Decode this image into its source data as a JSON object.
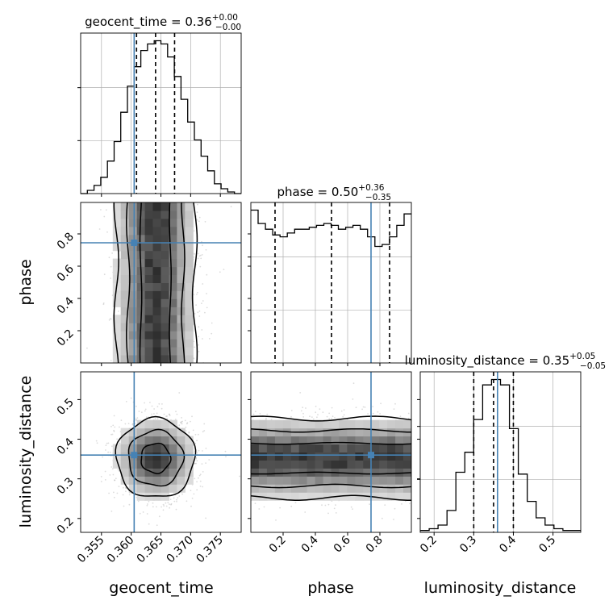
{
  "colors": {
    "truth": "#4682b4",
    "line": "#000000",
    "grid": "#b0b0b0"
  },
  "chart_data": {
    "type": "corner",
    "parameters": [
      "geocent_time",
      "phase",
      "luminosity_distance"
    ],
    "truths": {
      "geocent_time": 0.3605,
      "phase": 0.745,
      "luminosity_distance": 0.36
    },
    "titles": [
      {
        "param": "geocent_time",
        "prefix": "geocent_time = 0.36",
        "plus": "+0.00",
        "minus": "−0.00"
      },
      {
        "param": "phase",
        "prefix": "phase = 0.50",
        "plus": "+0.36",
        "minus": "−0.35"
      },
      {
        "param": "luminosity_distance",
        "prefix": "luminosity_distance = 0.35",
        "plus": "+0.05",
        "minus": "−0.05"
      }
    ],
    "axis_labels": {
      "x": [
        "geocent_time",
        "phase",
        "luminosity_distance"
      ],
      "y": [
        "phase",
        "luminosity_distance"
      ]
    },
    "ranges": {
      "geocent_time": [
        0.3515,
        0.3785
      ],
      "phase": [
        0.0,
        0.995
      ],
      "luminosity_distance": [
        0.165,
        0.57
      ]
    },
    "ticks": {
      "geocent_time": [
        "0.355",
        "0.360",
        "0.365",
        "0.370",
        "0.375"
      ],
      "phase": [
        "0.2",
        "0.4",
        "0.6",
        "0.8"
      ],
      "luminosity_distance": [
        "0.2",
        "0.3",
        "0.4",
        "0.5"
      ]
    },
    "histograms": {
      "geocent_time": {
        "edges": [
          0.3515,
          0.3785
        ],
        "counts": [
          0,
          2,
          5,
          10,
          20,
          32,
          50,
          66,
          78,
          88,
          92,
          94,
          92,
          84,
          72,
          58,
          44,
          33,
          23,
          14,
          6,
          3,
          1,
          0
        ],
        "quantiles": [
          0.3609,
          0.3641,
          0.3673
        ]
      },
      "phase": {
        "edges": [
          0.0,
          0.995
        ],
        "counts": [
          80,
          73,
          70,
          67,
          66,
          68,
          70,
          70,
          71,
          72,
          73,
          72,
          70,
          71,
          72,
          70,
          66,
          61,
          62,
          66,
          72,
          78
        ],
        "quantiles": [
          0.15,
          0.5,
          0.86
        ]
      },
      "luminosity_distance": {
        "edges": [
          0.165,
          0.57
        ],
        "counts": [
          1,
          2,
          4,
          12,
          33,
          44,
          62,
          81,
          84,
          81,
          57,
          32,
          17,
          8,
          4,
          2,
          1,
          1
        ],
        "quantiles": [
          0.3,
          0.35,
          0.4
        ]
      }
    }
  }
}
